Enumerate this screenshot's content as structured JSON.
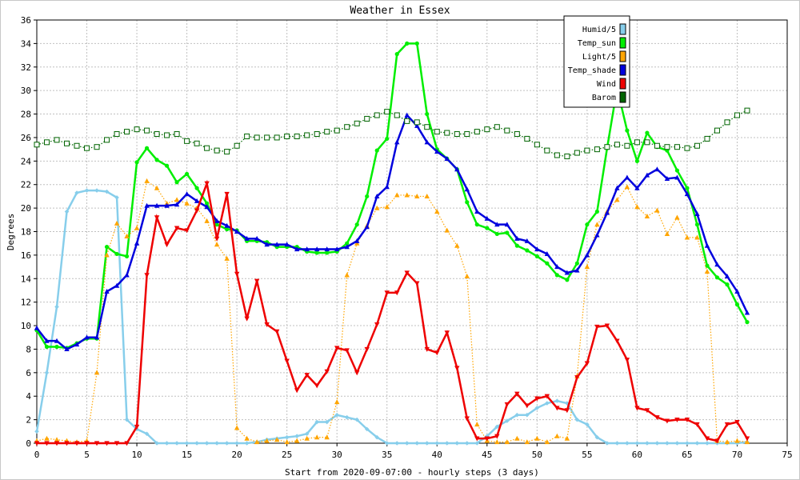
{
  "chart_data": {
    "type": "line",
    "title": "Weather in Essex",
    "xlabel": "Start from 2020-09-07:00 - hourly steps (3 days)",
    "ylabel": "Degrees",
    "xlim": [
      0,
      75
    ],
    "ylim": [
      0,
      36
    ],
    "xticks": [
      0,
      5,
      10,
      15,
      20,
      25,
      30,
      35,
      40,
      45,
      50,
      55,
      60,
      65,
      70,
      75
    ],
    "yticks": [
      0,
      2,
      4,
      6,
      8,
      10,
      12,
      14,
      16,
      18,
      20,
      22,
      24,
      26,
      28,
      30,
      32,
      34,
      36
    ],
    "grid": true,
    "legend_position": "top-right",
    "series": [
      {
        "name": "Humid/5",
        "color": "#87ceeb",
        "line": "solid",
        "marker": "diamond",
        "values": [
          1.0,
          6.0,
          11.6,
          19.7,
          21.3,
          21.5,
          21.5,
          21.4,
          20.9,
          2.0,
          1.2,
          0.8,
          0.0,
          0.0,
          0.0,
          0.0,
          0.0,
          0.0,
          0.0,
          0.0,
          0.0,
          0.0,
          0.1,
          0.3,
          0.4,
          0.5,
          0.6,
          0.8,
          1.8,
          1.8,
          2.4,
          2.2,
          2.0,
          1.2,
          0.5,
          0.0,
          0.0,
          0.0,
          0.0,
          0.0,
          0.0,
          0.0,
          0.0,
          0.0,
          0.0,
          0.6,
          1.4,
          1.9,
          2.4,
          2.4,
          3.0,
          3.4,
          3.6,
          3.4,
          2.0,
          1.6,
          0.5,
          0.0,
          0.0,
          0.0,
          0.0,
          0.0,
          0.0,
          0.0,
          0.0,
          0.0,
          0.0,
          0.0,
          0.0,
          0.0,
          0.0,
          0.1
        ]
      },
      {
        "name": "Temp_sun",
        "color": "#00ee00",
        "line": "solid",
        "marker": "circle",
        "values": [
          9.6,
          8.2,
          8.2,
          8.1,
          8.5,
          8.9,
          8.9,
          16.7,
          16.1,
          15.9,
          23.9,
          25.1,
          24.1,
          23.6,
          22.2,
          22.9,
          21.7,
          20.4,
          18.6,
          18.2,
          18.1,
          17.2,
          17.2,
          17.1,
          16.7,
          16.7,
          16.7,
          16.3,
          16.2,
          16.2,
          16.3,
          17.0,
          18.6,
          21.0,
          24.9,
          25.9,
          33.1,
          34.0,
          34.0,
          28.0,
          25.0,
          24.2,
          23.3,
          20.5,
          18.6,
          18.3,
          17.8,
          17.9,
          16.8,
          16.4,
          15.9,
          15.3,
          14.3,
          13.9,
          15.3,
          18.6,
          19.7,
          25.1,
          30.2,
          26.6,
          24.0,
          26.4,
          25.2,
          24.9,
          23.2,
          21.7,
          18.6,
          15.1,
          14.1,
          13.5,
          11.8,
          10.3
        ]
      },
      {
        "name": "Light/5",
        "color": "#ffa500",
        "line": "dotted",
        "marker": "triangle",
        "values": [
          0.2,
          0.4,
          0.3,
          0.2,
          0.1,
          0.2,
          6.0,
          16.0,
          18.7,
          17.6,
          18.3,
          22.3,
          21.7,
          20.4,
          20.7,
          20.4,
          20.0,
          18.9,
          16.9,
          15.7,
          1.3,
          0.4,
          0.1,
          0.2,
          0.3,
          0.1,
          0.2,
          0.4,
          0.5,
          0.5,
          3.5,
          14.3,
          17.0,
          18.5,
          20.0,
          20.1,
          21.1,
          21.1,
          21.0,
          21.0,
          19.7,
          18.1,
          16.8,
          14.2,
          1.6,
          0.2,
          0.1,
          0.1,
          0.4,
          0.1,
          0.4,
          0.1,
          0.6,
          0.4,
          5.7,
          15.0,
          18.6,
          19.7,
          20.7,
          21.8,
          20.1,
          19.3,
          19.8,
          17.8,
          19.2,
          17.5,
          17.5,
          14.6,
          0.2,
          0.1,
          0.2,
          0.1
        ]
      },
      {
        "name": "Temp_shade",
        "color": "#0000dd",
        "line": "solid",
        "marker": "triangle",
        "values": [
          9.8,
          8.7,
          8.7,
          8.0,
          8.4,
          9.0,
          9.0,
          12.9,
          13.4,
          14.3,
          17.0,
          20.2,
          20.2,
          20.2,
          20.3,
          21.2,
          20.6,
          20.1,
          18.9,
          18.5,
          18.0,
          17.4,
          17.4,
          16.9,
          16.9,
          16.9,
          16.5,
          16.5,
          16.5,
          16.5,
          16.5,
          16.7,
          17.2,
          18.4,
          21.0,
          21.8,
          25.6,
          27.9,
          27.0,
          25.6,
          24.8,
          24.2,
          23.3,
          21.6,
          19.7,
          19.1,
          18.6,
          18.6,
          17.4,
          17.2,
          16.5,
          16.1,
          15.0,
          14.5,
          14.7,
          16.0,
          17.7,
          19.6,
          21.7,
          22.6,
          21.7,
          22.8,
          23.3,
          22.5,
          22.6,
          21.2,
          19.5,
          16.8,
          15.2,
          14.2,
          12.9,
          11.1
        ]
      },
      {
        "name": "Wind",
        "color": "#ee0000",
        "line": "solid",
        "marker": "triangle-down",
        "values": [
          0.0,
          0.0,
          0.0,
          0.0,
          0.0,
          0.0,
          0.0,
          0.0,
          0.0,
          0.0,
          1.4,
          14.3,
          19.2,
          16.9,
          18.3,
          18.1,
          19.8,
          22.1,
          17.4,
          21.2,
          14.4,
          10.6,
          13.8,
          10.1,
          9.5,
          7.0,
          4.5,
          5.8,
          4.9,
          6.1,
          8.1,
          7.9,
          6.0,
          8.0,
          10.1,
          12.8,
          12.8,
          14.5,
          13.6,
          8.0,
          7.7,
          9.4,
          6.4,
          2.1,
          0.4,
          0.4,
          0.6,
          3.3,
          4.2,
          3.2,
          3.8,
          4.0,
          3.0,
          2.8,
          5.6,
          6.8,
          9.9,
          10.0,
          8.7,
          7.1,
          3.0,
          2.8,
          2.2,
          1.9,
          2.0,
          2.0,
          1.6,
          0.4,
          0.2,
          1.6,
          1.8,
          0.4
        ]
      },
      {
        "name": "Barom",
        "color": "#006400",
        "line": "dotted",
        "marker": "square",
        "values": [
          25.4,
          25.6,
          25.8,
          25.5,
          25.3,
          25.1,
          25.2,
          25.8,
          26.3,
          26.5,
          26.7,
          26.6,
          26.3,
          26.2,
          26.3,
          25.7,
          25.5,
          25.1,
          24.9,
          24.8,
          25.3,
          26.1,
          26.0,
          26.0,
          26.0,
          26.1,
          26.1,
          26.2,
          26.3,
          26.5,
          26.6,
          26.9,
          27.2,
          27.6,
          27.9,
          28.2,
          27.9,
          27.4,
          27.3,
          26.9,
          26.5,
          26.4,
          26.3,
          26.3,
          26.5,
          26.7,
          26.9,
          26.6,
          26.3,
          25.9,
          25.4,
          24.9,
          24.5,
          24.4,
          24.7,
          24.9,
          25.0,
          25.2,
          25.4,
          25.3,
          25.6,
          25.6,
          25.3,
          25.2,
          25.2,
          25.1,
          25.3,
          25.9,
          26.6,
          27.3,
          27.9,
          28.3
        ]
      }
    ]
  }
}
